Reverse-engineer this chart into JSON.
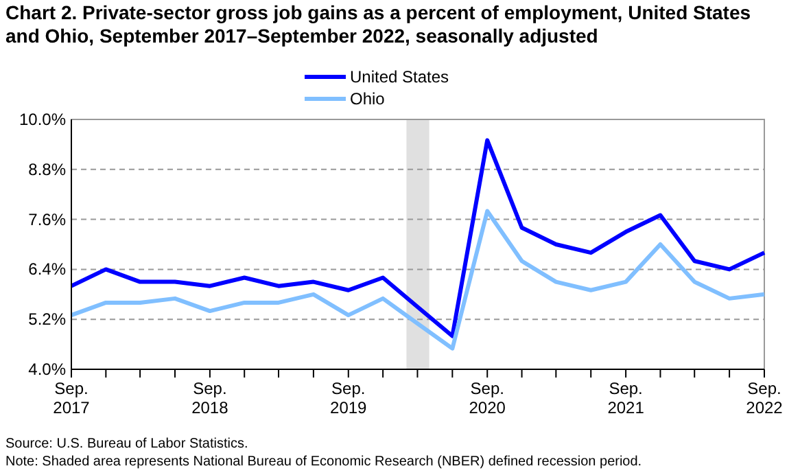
{
  "chart_data": {
    "type": "line",
    "title": "Chart 2. Private-sector gross job gains as a percent of employment, United States and Ohio, September 2017–September 2022, seasonally adjusted",
    "x": [
      "2017-09",
      "2017-12",
      "2018-03",
      "2018-06",
      "2018-09",
      "2018-12",
      "2019-03",
      "2019-06",
      "2019-09",
      "2019-12",
      "2020-03",
      "2020-06",
      "2020-09",
      "2020-12",
      "2021-03",
      "2021-06",
      "2021-09",
      "2021-12",
      "2022-03",
      "2022-06",
      "2022-09"
    ],
    "series": [
      {
        "name": "United States",
        "color": "#0000ff",
        "values": [
          6.0,
          6.4,
          6.1,
          6.1,
          6.0,
          6.2,
          6.0,
          6.1,
          5.9,
          6.2,
          5.5,
          4.8,
          9.5,
          7.4,
          7.0,
          6.8,
          7.3,
          7.7,
          6.6,
          6.4,
          6.8
        ]
      },
      {
        "name": "Ohio",
        "color": "#80bfff",
        "values": [
          5.3,
          5.6,
          5.6,
          5.7,
          5.4,
          5.6,
          5.6,
          5.8,
          5.3,
          5.7,
          5.1,
          4.5,
          7.8,
          6.6,
          6.1,
          5.9,
          6.1,
          7.0,
          6.1,
          5.7,
          5.8
        ]
      }
    ],
    "xlim": [
      "2017-09",
      "2022-09"
    ],
    "xticks": [
      {
        "value": "2017-09",
        "label": "Sep.\n2017"
      },
      {
        "value": "2017-12",
        "label": null
      },
      {
        "value": "2018-03",
        "label": null
      },
      {
        "value": "2018-06",
        "label": null
      },
      {
        "value": "2018-09",
        "label": "Sep.\n2018"
      },
      {
        "value": "2018-12",
        "label": null
      },
      {
        "value": "2019-03",
        "label": null
      },
      {
        "value": "2019-06",
        "label": null
      },
      {
        "value": "2019-09",
        "label": "Sep.\n2019"
      },
      {
        "value": "2019-12",
        "label": null
      },
      {
        "value": "2020-03",
        "label": null
      },
      {
        "value": "2020-06",
        "label": null
      },
      {
        "value": "2020-09",
        "label": "Sep.\n2020"
      },
      {
        "value": "2020-12",
        "label": null
      },
      {
        "value": "2021-03",
        "label": null
      },
      {
        "value": "2021-06",
        "label": null
      },
      {
        "value": "2021-09",
        "label": "Sep.\n2021"
      },
      {
        "value": "2021-12",
        "label": null
      },
      {
        "value": "2022-03",
        "label": null
      },
      {
        "value": "2022-06",
        "label": null
      },
      {
        "value": "2022-09",
        "label": "Sep.\n2022"
      }
    ],
    "ylim": [
      4.0,
      10.0
    ],
    "yticks": [
      {
        "value": 4.0,
        "label": "4.0%"
      },
      {
        "value": 5.2,
        "label": "5.2%"
      },
      {
        "value": 6.4,
        "label": "6.4%"
      },
      {
        "value": 7.6,
        "label": "7.6%"
      },
      {
        "value": 8.8,
        "label": "8.8%"
      },
      {
        "value": 10.0,
        "label": "10.0%"
      }
    ],
    "bands": [
      {
        "axis": "x",
        "from": "2020-02",
        "to": "2020-04",
        "color": "#e0e0e0"
      }
    ],
    "grid": "y",
    "legend": "top",
    "line_style": "solid",
    "annotations": [
      "Source: U.S. Bureau of Labor Statistics.",
      "Note: Shaded area represents National Bureau of Economic Research (NBER) defined recession period."
    ]
  }
}
